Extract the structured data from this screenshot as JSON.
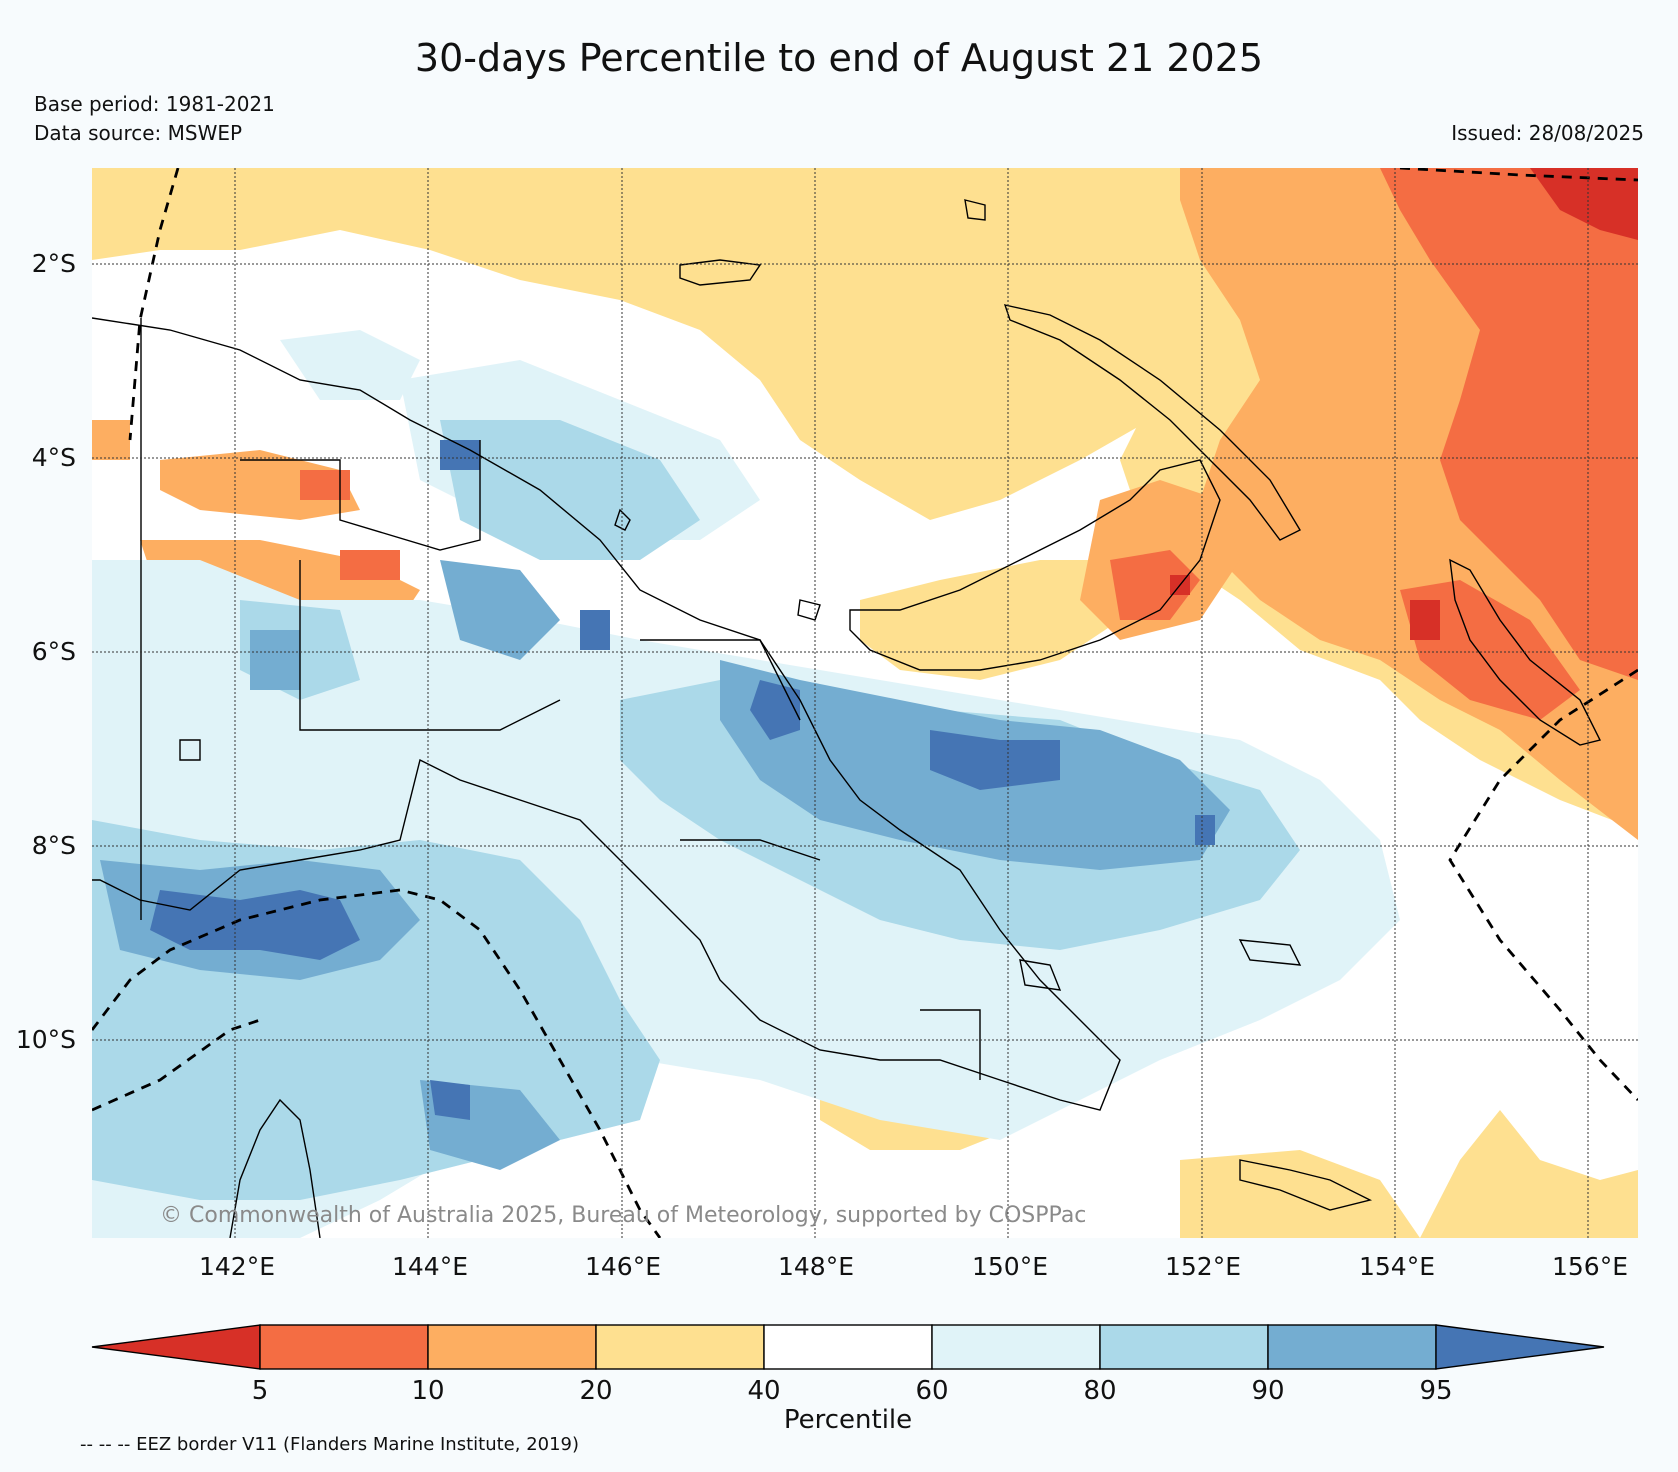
{
  "header": {
    "title": "30-days Percentile to end of August 21 2025",
    "base_period": "Base period: 1981-2021",
    "data_source": "Data source: MSWEP",
    "issued": "Issued: 28/08/2025"
  },
  "map": {
    "lat_labels": [
      "2°S",
      "4°S",
      "6°S",
      "8°S",
      "10°S"
    ],
    "lon_labels": [
      "142°E",
      "144°E",
      "146°E",
      "148°E",
      "150°E",
      "152°E",
      "154°E",
      "156°E"
    ],
    "copyright": "© Commonwealth of Australia 2025, Bureau of Meteorology, supported by COSPPac"
  },
  "legend": {
    "label": "Percentile",
    "ticks": [
      "5",
      "10",
      "20",
      "40",
      "60",
      "80",
      "90",
      "95"
    ],
    "colors": [
      "#d73027",
      "#f46d43",
      "#fdae61",
      "#fee090",
      "#ffffff",
      "#e0f3f8",
      "#abd9e9",
      "#74add1",
      "#4575b4"
    ],
    "eez_note": "-- -- -- EEZ border V11 (Flanders Marine Institute, 2019)"
  }
}
